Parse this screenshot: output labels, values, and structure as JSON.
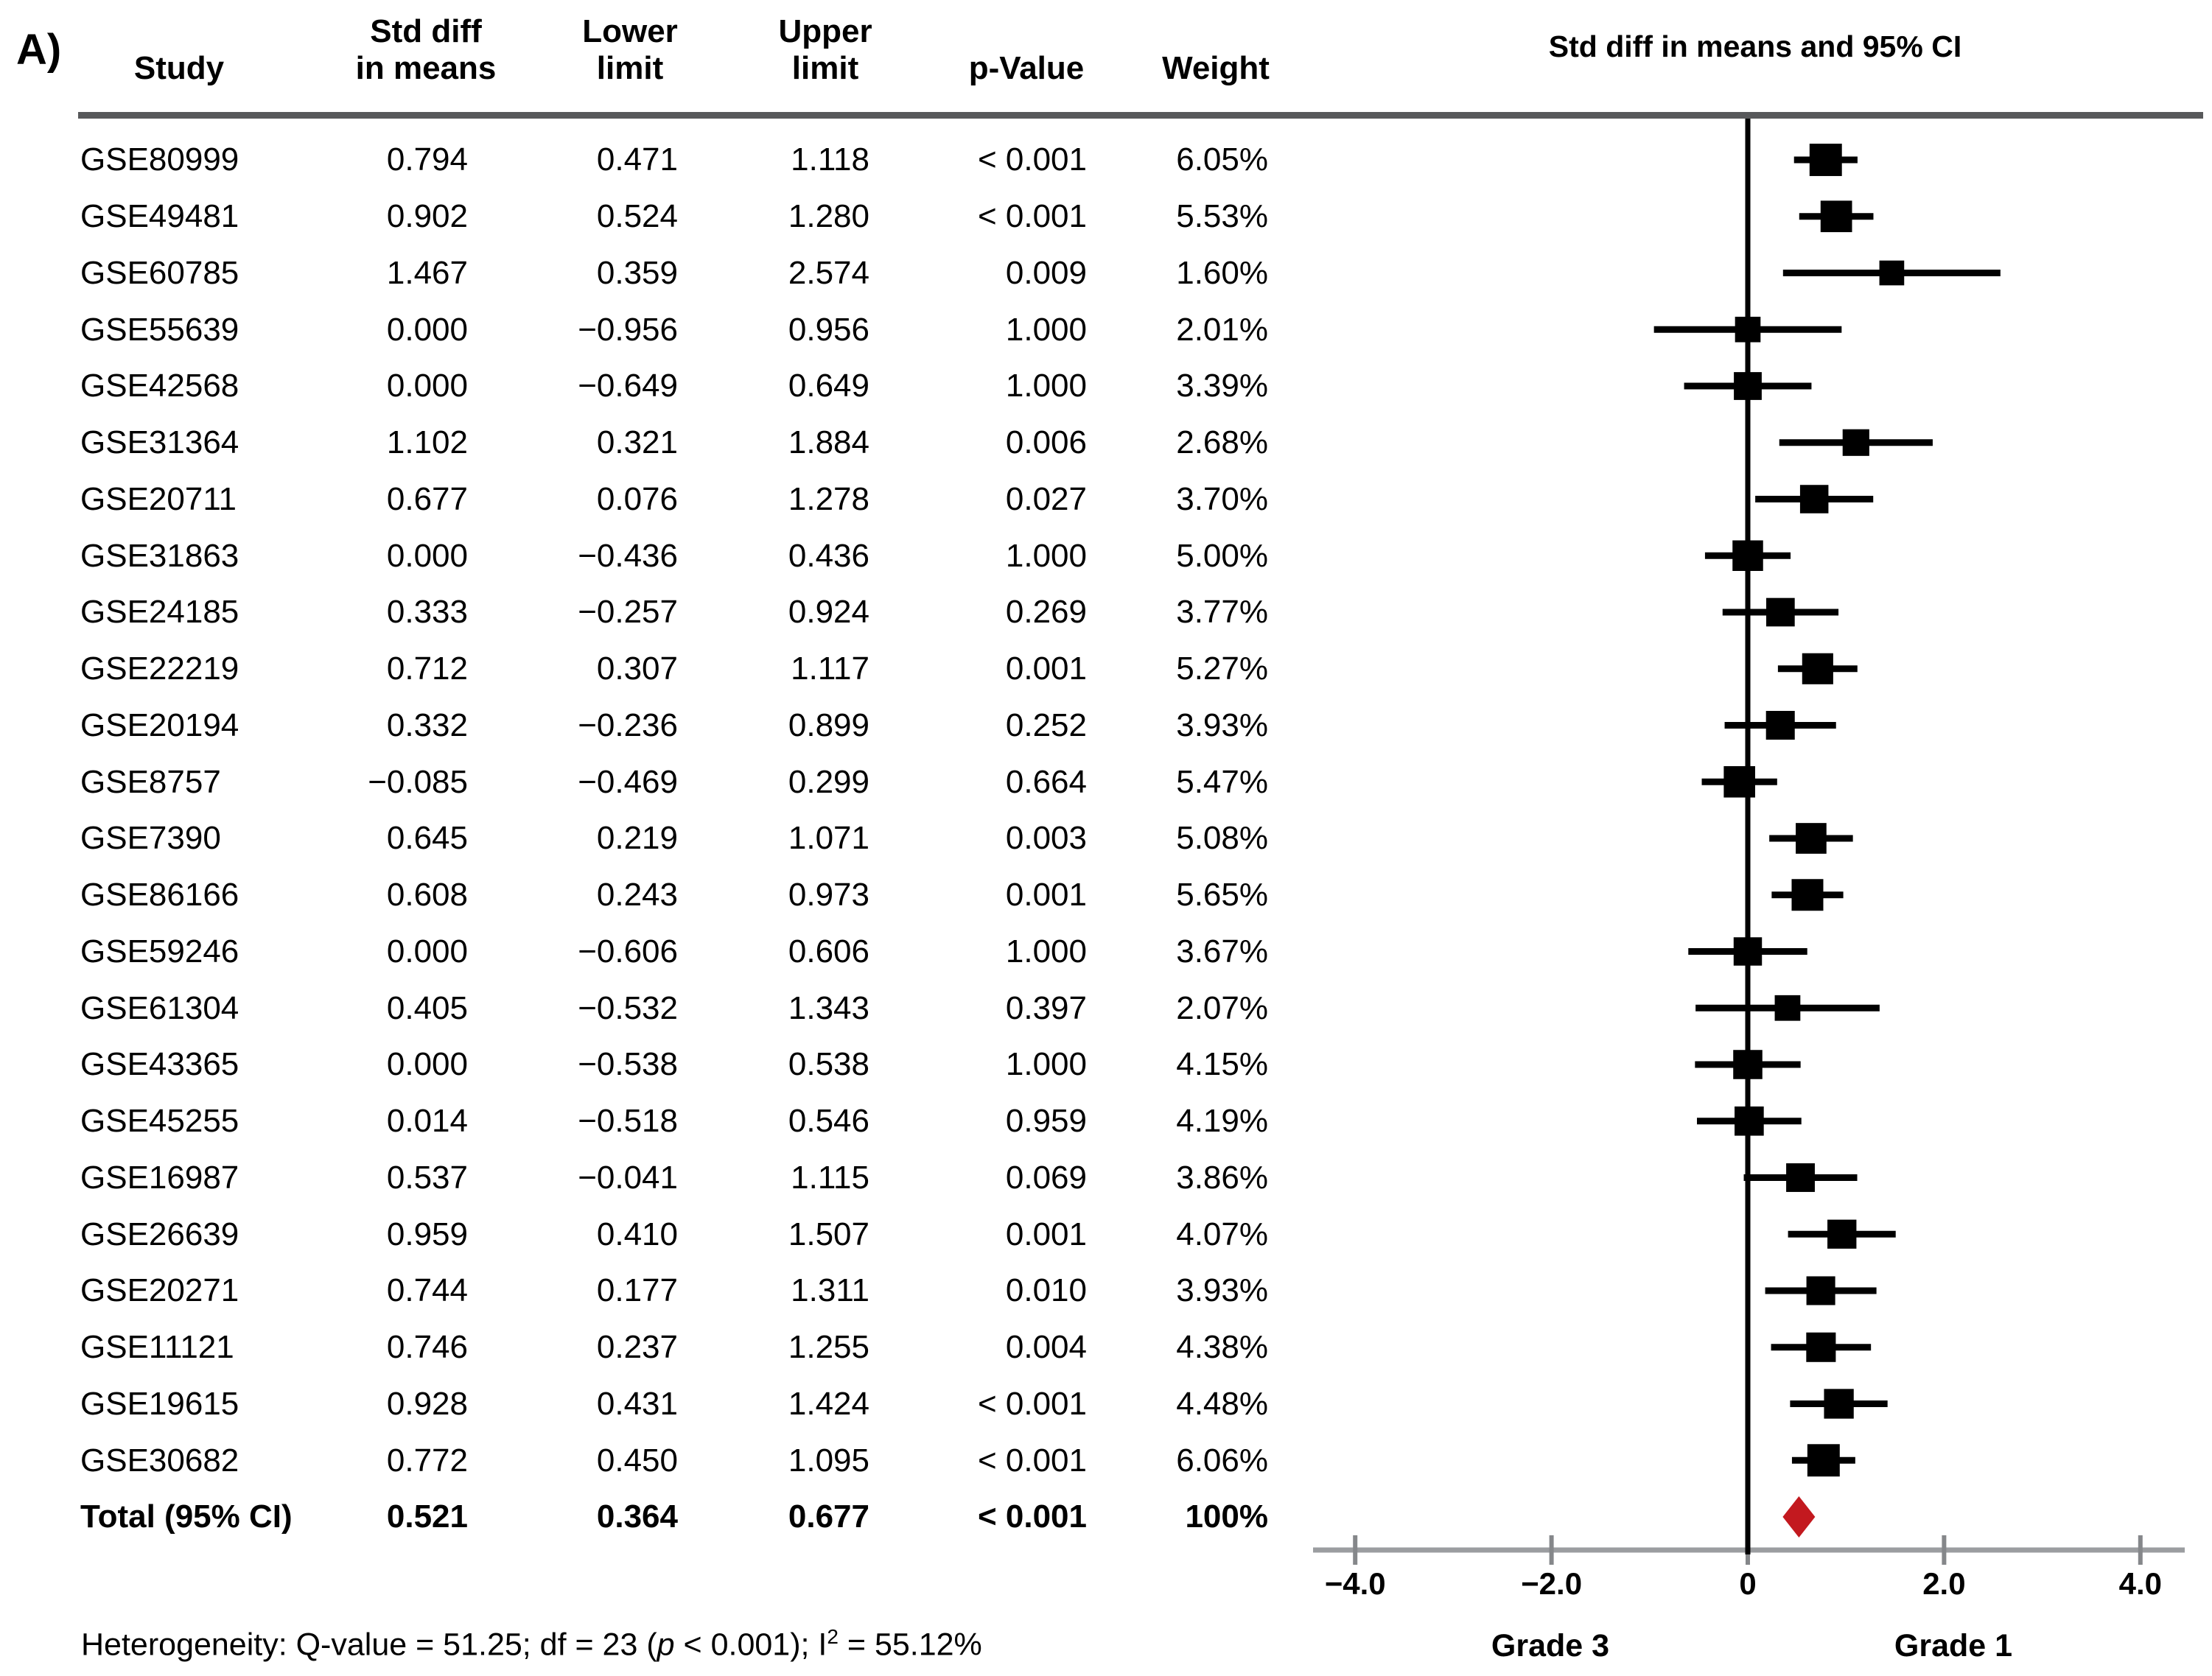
{
  "panel_label": "A)",
  "table": {
    "headers": {
      "study": "Study",
      "std_diff": [
        "Std diff",
        "in means"
      ],
      "lower": [
        "Lower",
        "limit"
      ],
      "upper": [
        "Upper",
        "limit"
      ],
      "p_value": "p-Value",
      "weight": "Weight"
    },
    "rows": [
      {
        "study": "GSE80999",
        "std": "0.794",
        "lower": "0.471",
        "upper": "1.118",
        "p": "< 0.001",
        "weight": "6.05%"
      },
      {
        "study": "GSE49481",
        "std": "0.902",
        "lower": "0.524",
        "upper": "1.280",
        "p": "< 0.001",
        "weight": "5.53%"
      },
      {
        "study": "GSE60785",
        "std": "1.467",
        "lower": "0.359",
        "upper": "2.574",
        "p": "0.009",
        "weight": "1.60%"
      },
      {
        "study": "GSE55639",
        "std": "0.000",
        "lower": "−0.956",
        "upper": "0.956",
        "p": "1.000",
        "weight": "2.01%"
      },
      {
        "study": "GSE42568",
        "std": "0.000",
        "lower": "−0.649",
        "upper": "0.649",
        "p": "1.000",
        "weight": "3.39%"
      },
      {
        "study": "GSE31364",
        "std": "1.102",
        "lower": "0.321",
        "upper": "1.884",
        "p": "0.006",
        "weight": "2.68%"
      },
      {
        "study": "GSE20711",
        "std": "0.677",
        "lower": "0.076",
        "upper": "1.278",
        "p": "0.027",
        "weight": "3.70%"
      },
      {
        "study": "GSE31863",
        "std": "0.000",
        "lower": "−0.436",
        "upper": "0.436",
        "p": "1.000",
        "weight": "5.00%"
      },
      {
        "study": "GSE24185",
        "std": "0.333",
        "lower": "−0.257",
        "upper": "0.924",
        "p": "0.269",
        "weight": "3.77%"
      },
      {
        "study": "GSE22219",
        "std": "0.712",
        "lower": "0.307",
        "upper": "1.117",
        "p": "0.001",
        "weight": "5.27%"
      },
      {
        "study": "GSE20194",
        "std": "0.332",
        "lower": "−0.236",
        "upper": "0.899",
        "p": "0.252",
        "weight": "3.93%"
      },
      {
        "study": "GSE8757",
        "std": "−0.085",
        "lower": "−0.469",
        "upper": "0.299",
        "p": "0.664",
        "weight": "5.47%"
      },
      {
        "study": "GSE7390",
        "std": "0.645",
        "lower": "0.219",
        "upper": "1.071",
        "p": "0.003",
        "weight": "5.08%"
      },
      {
        "study": "GSE86166",
        "std": "0.608",
        "lower": "0.243",
        "upper": "0.973",
        "p": "0.001",
        "weight": "5.65%"
      },
      {
        "study": "GSE59246",
        "std": "0.000",
        "lower": "−0.606",
        "upper": "0.606",
        "p": "1.000",
        "weight": "3.67%"
      },
      {
        "study": "GSE61304",
        "std": "0.405",
        "lower": "−0.532",
        "upper": "1.343",
        "p": "0.397",
        "weight": "2.07%"
      },
      {
        "study": "GSE43365",
        "std": "0.000",
        "lower": "−0.538",
        "upper": "0.538",
        "p": "1.000",
        "weight": "4.15%"
      },
      {
        "study": "GSE45255",
        "std": "0.014",
        "lower": "−0.518",
        "upper": "0.546",
        "p": "0.959",
        "weight": "4.19%"
      },
      {
        "study": "GSE16987",
        "std": "0.537",
        "lower": "−0.041",
        "upper": "1.115",
        "p": "0.069",
        "weight": "3.86%"
      },
      {
        "study": "GSE26639",
        "std": "0.959",
        "lower": "0.410",
        "upper": "1.507",
        "p": "0.001",
        "weight": "4.07%"
      },
      {
        "study": "GSE20271",
        "std": "0.744",
        "lower": "0.177",
        "upper": "1.311",
        "p": "0.010",
        "weight": "3.93%"
      },
      {
        "study": "GSE11121",
        "std": "0.746",
        "lower": "0.237",
        "upper": "1.255",
        "p": "0.004",
        "weight": "4.38%"
      },
      {
        "study": "GSE19615",
        "std": "0.928",
        "lower": "0.431",
        "upper": "1.424",
        "p": "< 0.001",
        "weight": "4.48%"
      },
      {
        "study": "GSE30682",
        "std": "0.772",
        "lower": "0.450",
        "upper": "1.095",
        "p": "< 0.001",
        "weight": "6.06%"
      }
    ],
    "total_row": {
      "study": "Total (95% CI)",
      "std": "0.521",
      "lower": "0.364",
      "upper": "0.677",
      "p": "< 0.001",
      "weight": "100%"
    }
  },
  "plot": {
    "title": "Std diff in means and 95% CI",
    "x_tick_labels": [
      "−4.0",
      "−2.0",
      "0",
      "2.0",
      "4.0"
    ],
    "left_group_label": "Grade 3",
    "right_group_label": "Grade 1",
    "colors": {
      "square": "#000000",
      "whisker": "#000000",
      "zero_line": "#000000",
      "axis_line": "#9b9da0",
      "tick": "#85878a",
      "separator": "#58595b",
      "diamond": "#c3191f"
    }
  },
  "footnote": {
    "before_p": "Heterogeneity: Q-value = 51.25; df = 23 (",
    "p_symbol": "p",
    "after_p": " < 0.001); I",
    "sup": "2",
    "end": " = 55.12%"
  },
  "chart_data": {
    "type": "scatter",
    "plot_style": "forest",
    "title": "Std diff in means and 95% CI",
    "xlabel": "Std diff in means",
    "x_ticks": [
      -4.0,
      -2.0,
      0,
      2.0,
      4.0
    ],
    "xlim": [
      -4.45,
      4.45
    ],
    "left_direction_label": "Grade 3",
    "right_direction_label": "Grade 1",
    "studies": [
      {
        "name": "GSE80999",
        "est": 0.794,
        "lo": 0.471,
        "hi": 1.118,
        "p": "< 0.001",
        "weight": 6.05
      },
      {
        "name": "GSE49481",
        "est": 0.902,
        "lo": 0.524,
        "hi": 1.28,
        "p": "< 0.001",
        "weight": 5.53
      },
      {
        "name": "GSE60785",
        "est": 1.467,
        "lo": 0.359,
        "hi": 2.574,
        "p": "0.009",
        "weight": 1.6
      },
      {
        "name": "GSE55639",
        "est": 0.0,
        "lo": -0.956,
        "hi": 0.956,
        "p": "1.000",
        "weight": 2.01
      },
      {
        "name": "GSE42568",
        "est": 0.0,
        "lo": -0.649,
        "hi": 0.649,
        "p": "1.000",
        "weight": 3.39
      },
      {
        "name": "GSE31364",
        "est": 1.102,
        "lo": 0.321,
        "hi": 1.884,
        "p": "0.006",
        "weight": 2.68
      },
      {
        "name": "GSE20711",
        "est": 0.677,
        "lo": 0.076,
        "hi": 1.278,
        "p": "0.027",
        "weight": 3.7
      },
      {
        "name": "GSE31863",
        "est": 0.0,
        "lo": -0.436,
        "hi": 0.436,
        "p": "1.000",
        "weight": 5.0
      },
      {
        "name": "GSE24185",
        "est": 0.333,
        "lo": -0.257,
        "hi": 0.924,
        "p": "0.269",
        "weight": 3.77
      },
      {
        "name": "GSE22219",
        "est": 0.712,
        "lo": 0.307,
        "hi": 1.117,
        "p": "0.001",
        "weight": 5.27
      },
      {
        "name": "GSE20194",
        "est": 0.332,
        "lo": -0.236,
        "hi": 0.899,
        "p": "0.252",
        "weight": 3.93
      },
      {
        "name": "GSE8757",
        "est": -0.085,
        "lo": -0.469,
        "hi": 0.299,
        "p": "0.664",
        "weight": 5.47
      },
      {
        "name": "GSE7390",
        "est": 0.645,
        "lo": 0.219,
        "hi": 1.071,
        "p": "0.003",
        "weight": 5.08
      },
      {
        "name": "GSE86166",
        "est": 0.608,
        "lo": 0.243,
        "hi": 0.973,
        "p": "0.001",
        "weight": 5.65
      },
      {
        "name": "GSE59246",
        "est": 0.0,
        "lo": -0.606,
        "hi": 0.606,
        "p": "1.000",
        "weight": 3.67
      },
      {
        "name": "GSE61304",
        "est": 0.405,
        "lo": -0.532,
        "hi": 1.343,
        "p": "0.397",
        "weight": 2.07
      },
      {
        "name": "GSE43365",
        "est": 0.0,
        "lo": -0.538,
        "hi": 0.538,
        "p": "1.000",
        "weight": 4.15
      },
      {
        "name": "GSE45255",
        "est": 0.014,
        "lo": -0.518,
        "hi": 0.546,
        "p": "0.959",
        "weight": 4.19
      },
      {
        "name": "GSE16987",
        "est": 0.537,
        "lo": -0.041,
        "hi": 1.115,
        "p": "0.069",
        "weight": 3.86
      },
      {
        "name": "GSE26639",
        "est": 0.959,
        "lo": 0.41,
        "hi": 1.507,
        "p": "0.001",
        "weight": 4.07
      },
      {
        "name": "GSE20271",
        "est": 0.744,
        "lo": 0.177,
        "hi": 1.311,
        "p": "0.010",
        "weight": 3.93
      },
      {
        "name": "GSE11121",
        "est": 0.746,
        "lo": 0.237,
        "hi": 1.255,
        "p": "0.004",
        "weight": 4.38
      },
      {
        "name": "GSE19615",
        "est": 0.928,
        "lo": 0.431,
        "hi": 1.424,
        "p": "< 0.001",
        "weight": 4.48
      },
      {
        "name": "GSE30682",
        "est": 0.772,
        "lo": 0.45,
        "hi": 1.095,
        "p": "< 0.001",
        "weight": 6.06
      }
    ],
    "total": {
      "name": "Total (95% CI)",
      "est": 0.521,
      "lo": 0.364,
      "hi": 0.677,
      "p": "< 0.001",
      "weight": 100
    },
    "heterogeneity": {
      "q_value": 51.25,
      "df": 23,
      "p": "< 0.001",
      "i_squared_pct": 55.12
    },
    "legend_position": "none",
    "grid": false
  }
}
